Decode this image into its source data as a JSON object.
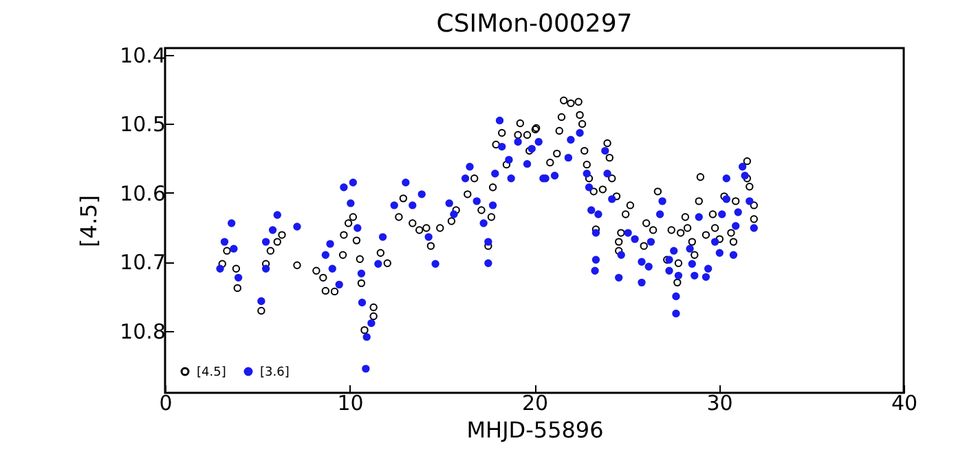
{
  "chart_data": {
    "type": "scatter",
    "title": "CSIMon-000297",
    "xlabel": "MHJD-55896",
    "ylabel": "[4.5]",
    "xlim": [
      0,
      40
    ],
    "xticks": [
      0,
      10,
      20,
      30,
      40
    ],
    "ylim": [
      10.89,
      10.39
    ],
    "yticks": [
      10.4,
      10.5,
      10.6,
      10.7,
      10.8
    ],
    "grid": false,
    "legend": "bottom left",
    "marker": "circle",
    "series": [
      {
        "name": "[4.5]",
        "color": "#000000",
        "x": [
          3.1,
          3.35,
          3.85,
          3.92,
          5.46,
          5.71,
          6.08,
          6.33,
          5.21,
          7.15,
          8.19,
          8.56,
          8.69,
          9.18,
          9.63,
          9.68,
          9.93,
          10.18,
          10.37,
          10.55,
          10.63,
          11.29,
          11.29,
          10.8,
          11.67,
          12.04,
          12.66,
          12.9,
          13.4,
          13.77,
          14.15,
          14.39,
          14.89,
          15.51,
          15.76,
          16.38,
          16.75,
          17.13,
          17.67,
          17.5,
          17.75,
          17.92,
          18.24,
          18.49,
          19.23,
          19.11,
          19.61,
          20.05,
          19.73,
          20.1,
          20.85,
          21.22,
          21.35,
          21.47,
          21.59,
          21.97,
          22.39,
          22.46,
          22.59,
          22.71,
          22.84,
          22.96,
          23.21,
          23.7,
          23.95,
          24.07,
          24.2,
          24.45,
          23.33,
          24.94,
          25.19,
          24.57,
          24.57,
          24.69,
          26.06,
          26.43,
          25.93,
          26.68,
          27.42,
          27.8,
          27.74,
          27.18,
          27.92,
          28.29,
          28.17,
          28.54,
          28.67,
          28.99,
          28.91,
          29.29,
          29.66,
          29.78,
          30.03,
          30.28,
          30.9,
          30.65,
          31.52,
          31.52,
          31.65,
          31.89,
          31.89,
          30.78
        ],
        "values": [
          10.703,
          10.684,
          10.71,
          10.738,
          10.703,
          10.684,
          10.671,
          10.661,
          10.771,
          10.705,
          10.713,
          10.723,
          10.742,
          10.743,
          10.69,
          10.661,
          10.644,
          10.635,
          10.669,
          10.696,
          10.731,
          10.766,
          10.779,
          10.799,
          10.687,
          10.702,
          10.635,
          10.608,
          10.644,
          10.654,
          10.651,
          10.677,
          10.651,
          10.641,
          10.625,
          10.602,
          10.579,
          10.625,
          10.635,
          10.677,
          10.592,
          10.53,
          10.513,
          10.559,
          10.499,
          10.516,
          10.516,
          10.508,
          10.539,
          10.506,
          10.556,
          10.543,
          10.51,
          10.49,
          10.466,
          10.47,
          10.468,
          10.487,
          10.5,
          10.539,
          10.559,
          10.579,
          10.598,
          10.595,
          10.528,
          10.549,
          10.579,
          10.605,
          10.653,
          10.631,
          10.618,
          10.671,
          10.684,
          10.658,
          10.644,
          10.654,
          10.677,
          10.598,
          10.654,
          10.702,
          10.73,
          10.697,
          10.658,
          10.651,
          10.635,
          10.671,
          10.69,
          10.577,
          10.612,
          10.661,
          10.631,
          10.651,
          10.667,
          10.605,
          10.612,
          10.658,
          10.554,
          10.579,
          10.591,
          10.618,
          10.638,
          10.671
        ]
      },
      {
        "name": "[3.6]",
        "color": "#1a1aee",
        "x": [
          3.6,
          3.22,
          3.72,
          2.98,
          3.97,
          6.08,
          5.83,
          5.46,
          5.46,
          5.21,
          7.15,
          8.94,
          8.69,
          9.06,
          9.43,
          9.68,
          10.05,
          10.18,
          10.42,
          10.63,
          10.67,
          10.92,
          10.87,
          11.17,
          11.79,
          11.54,
          13.03,
          12.41,
          13.9,
          13.4,
          14.27,
          14.64,
          15.39,
          15.64,
          16.5,
          16.26,
          16.88,
          17.25,
          17.5,
          17.5,
          17.75,
          17.87,
          18.12,
          18.24,
          18.62,
          18.74,
          19.11,
          19.61,
          19.86,
          20.23,
          20.6,
          20.48,
          21.1,
          21.84,
          21.97,
          22.46,
          22.84,
          22.96,
          23.83,
          23.95,
          24.2,
          23.08,
          23.46,
          23.33,
          23.33,
          23.28,
          24.57,
          24.7,
          25.07,
          25.44,
          25.81,
          25.81,
          26.19,
          26.31,
          26.8,
          26.93,
          27.3,
          27.55,
          27.3,
          27.8,
          27.67,
          27.67,
          28.42,
          28.54,
          28.67,
          28.91,
          29.41,
          29.29,
          29.78,
          30.03,
          30.16,
          30.4,
          30.4,
          30.78,
          30.9,
          31.03,
          31.27,
          31.4,
          31.65,
          31.89
        ],
        "values": [
          10.644,
          10.671,
          10.681,
          10.71,
          10.723,
          10.632,
          10.654,
          10.671,
          10.71,
          10.757,
          10.649,
          10.674,
          10.69,
          10.71,
          10.733,
          10.592,
          10.615,
          10.585,
          10.651,
          10.717,
          10.759,
          10.809,
          10.855,
          10.789,
          10.664,
          10.703,
          10.585,
          10.618,
          10.602,
          10.618,
          10.664,
          10.703,
          10.615,
          10.631,
          10.562,
          10.579,
          10.612,
          10.644,
          10.671,
          10.702,
          10.618,
          10.572,
          10.495,
          10.533,
          10.552,
          10.579,
          10.526,
          10.558,
          10.536,
          10.526,
          10.579,
          10.579,
          10.575,
          10.549,
          10.523,
          10.513,
          10.572,
          10.592,
          10.539,
          10.572,
          10.609,
          10.625,
          10.631,
          10.658,
          10.697,
          10.713,
          10.723,
          10.69,
          10.658,
          10.667,
          10.7,
          10.73,
          10.707,
          10.671,
          10.631,
          10.612,
          10.697,
          10.684,
          10.713,
          10.72,
          10.75,
          10.775,
          10.681,
          10.703,
          10.72,
          10.635,
          10.71,
          10.722,
          10.671,
          10.687,
          10.631,
          10.609,
          10.579,
          10.69,
          10.648,
          10.628,
          10.562,
          10.575,
          10.612,
          10.651
        ]
      }
    ]
  }
}
